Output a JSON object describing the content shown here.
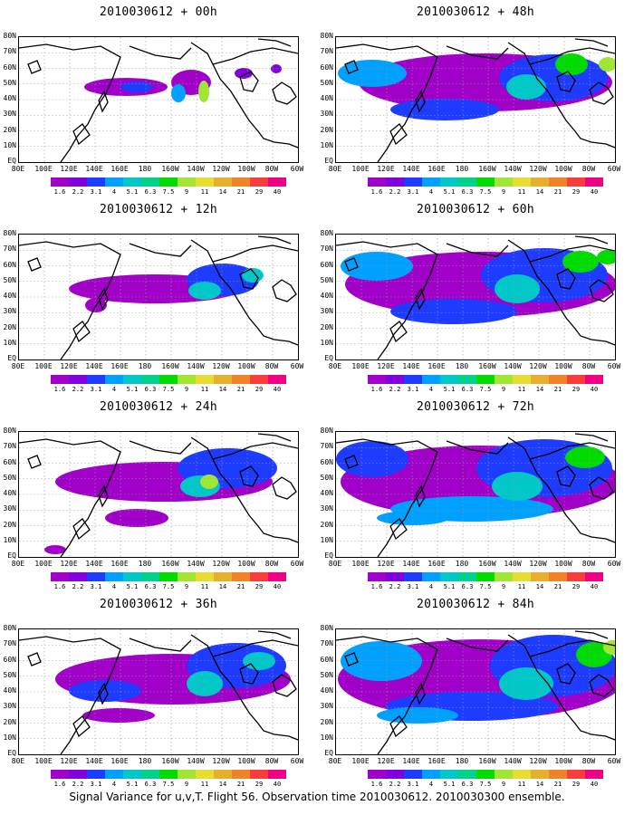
{
  "caption": "Signal Variance for u,v,T. Flight 56. Observation time 2010030612. 2010030300 ensemble.",
  "lat_labels": [
    "80N",
    "70N",
    "60N",
    "50N",
    "40N",
    "30N",
    "20N",
    "10N",
    "EQ"
  ],
  "lon_labels": [
    "80E",
    "100E",
    "120E",
    "140E",
    "160E",
    "180",
    "160W",
    "140W",
    "120W",
    "100W",
    "80W",
    "60W"
  ],
  "colorbar": {
    "levels": [
      "1.6",
      "2.2",
      "3.1",
      "4",
      "5.1",
      "6.3",
      "7.5",
      "9",
      "11",
      "14",
      "21",
      "29",
      "40"
    ],
    "colors": [
      "#a000c8",
      "#8200dc",
      "#1e3cff",
      "#00a0ff",
      "#00c8c8",
      "#00d28c",
      "#00dc00",
      "#a0e632",
      "#e6dc32",
      "#e6af2d",
      "#f08228",
      "#fa3c3c",
      "#f00082"
    ]
  },
  "panels": [
    {
      "title": "2010030612 + 00h",
      "level": 0
    },
    {
      "title": "2010030612 + 48h",
      "level": 4
    },
    {
      "title": "2010030612 + 12h",
      "level": 1
    },
    {
      "title": "2010030612 + 60h",
      "level": 5
    },
    {
      "title": "2010030612 + 24h",
      "level": 2
    },
    {
      "title": "2010030612 + 72h",
      "level": 6
    },
    {
      "title": "2010030612 + 36h",
      "level": 3
    },
    {
      "title": "2010030612 + 84h",
      "level": 7
    }
  ]
}
